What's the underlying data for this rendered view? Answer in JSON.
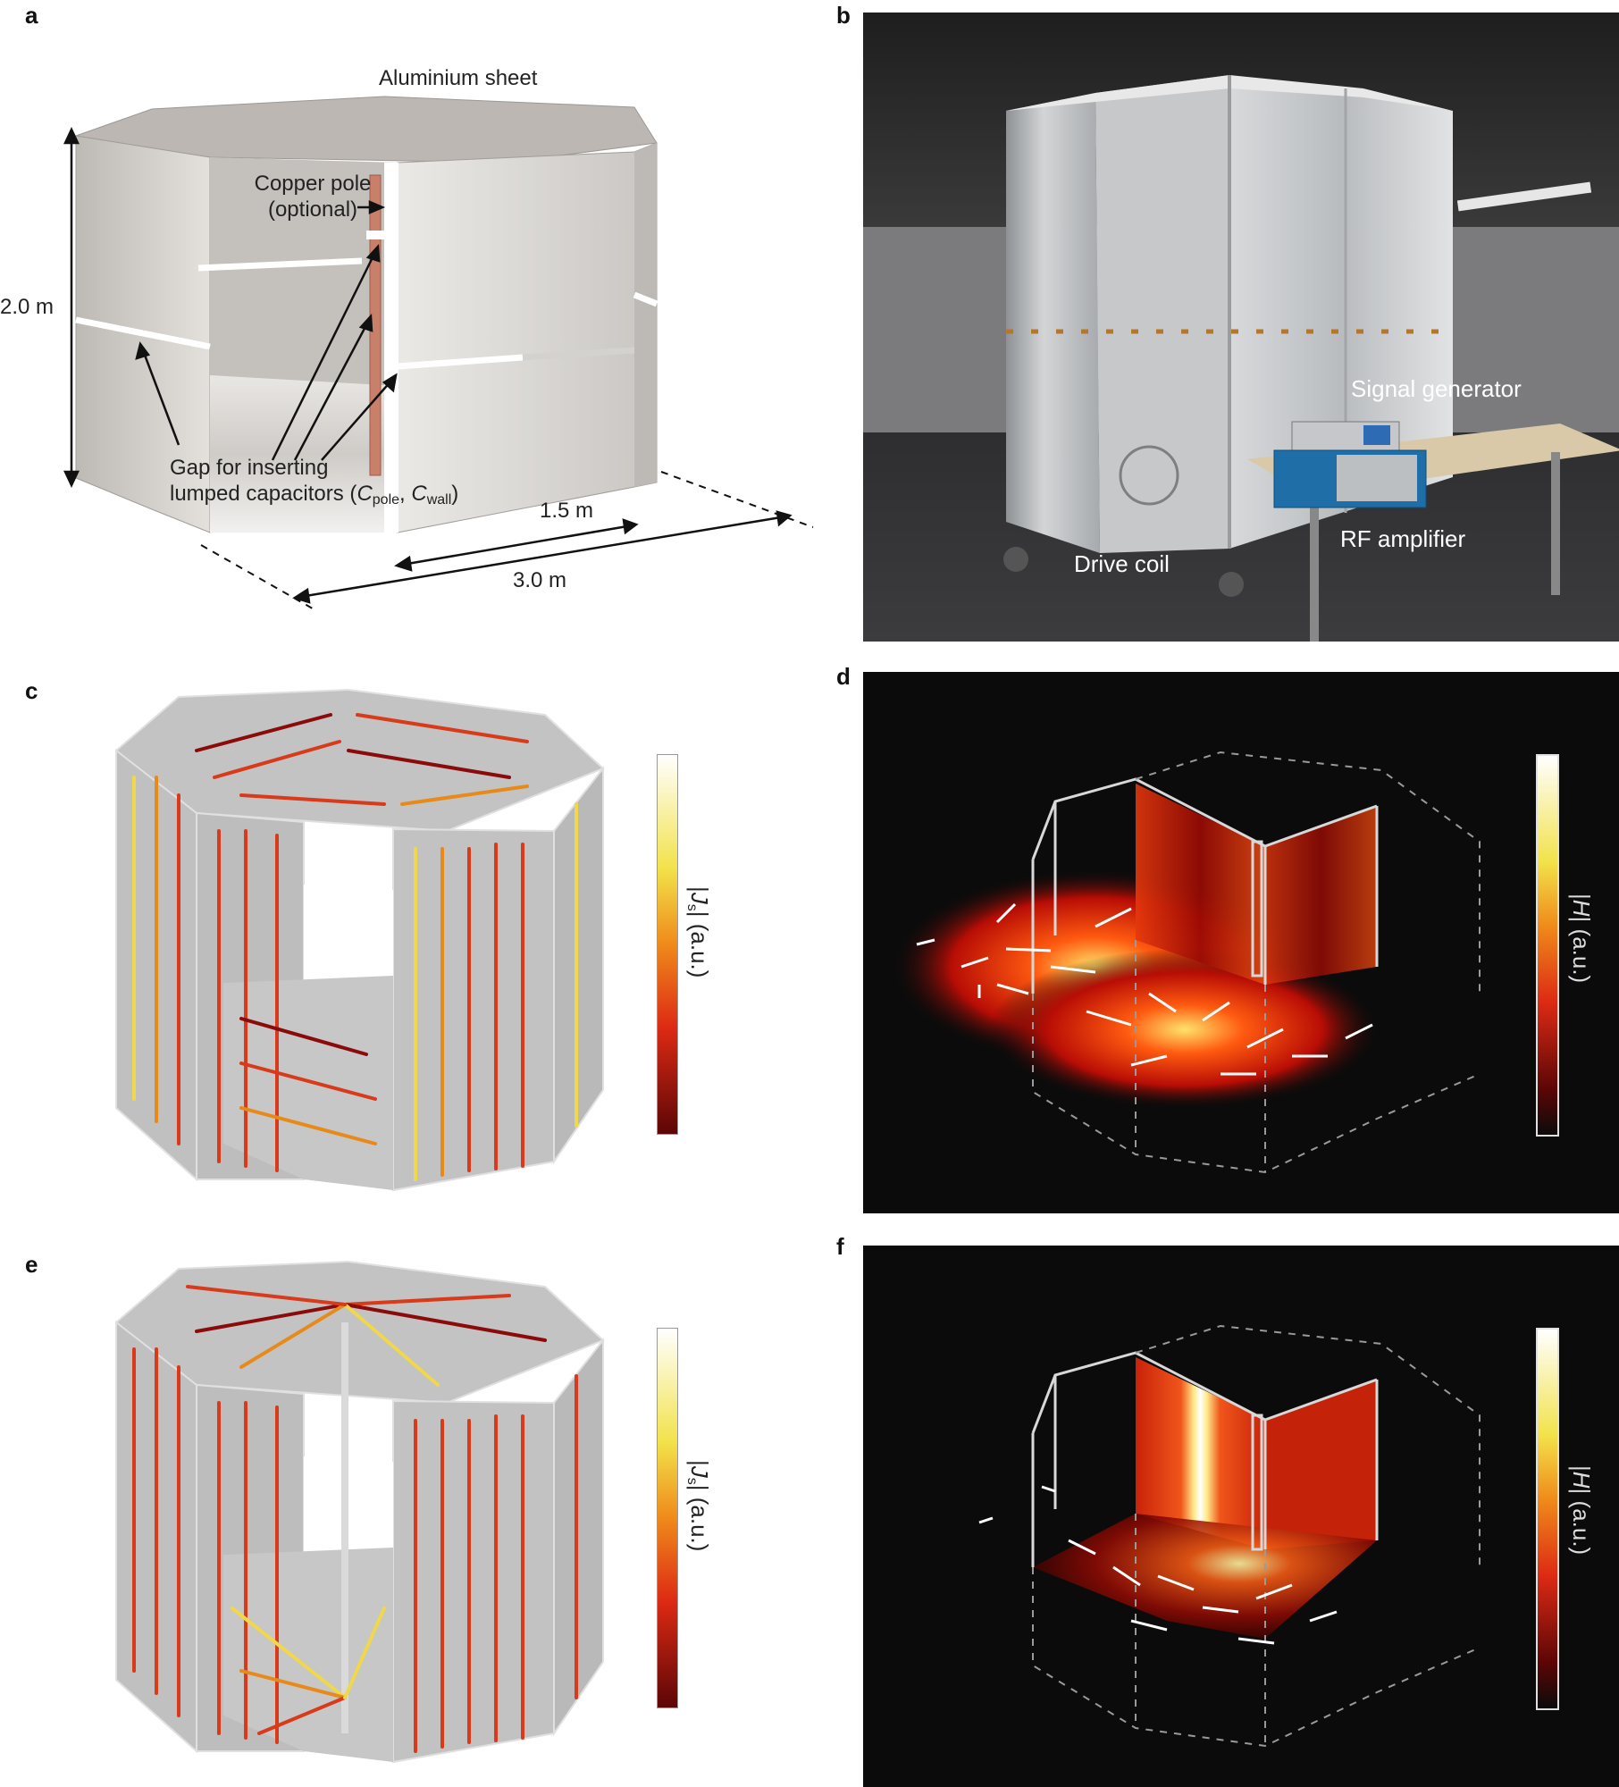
{
  "panel_labels": {
    "a": "a",
    "b": "b",
    "c": "c",
    "d": "d",
    "e": "e",
    "f": "f"
  },
  "panel_a": {
    "aluminium_sheet": "Aluminium sheet",
    "copper_pole_line1": "Copper pole",
    "copper_pole_line2": "(optional)",
    "gap_line1": "Gap for inserting",
    "gap_line2_prefix": "lumped capacitors (",
    "c_symbol": "C",
    "c_pole_sub": "pole",
    "comma": ", ",
    "c_wall_sub": "wall",
    "close_paren": ")",
    "height": "2.0 m",
    "half_width": "1.5 m",
    "width": "3.0 m"
  },
  "panel_b": {
    "signal_generator": "Signal generator",
    "rf_amplifier": "RF amplifier",
    "drive_coil": "Drive coil"
  },
  "panel_c": {
    "cbar_symbol": "J",
    "cbar_sub": "s",
    "cbar_unit": "(a.u.)"
  },
  "panel_d": {
    "cbar_symbol": "H",
    "cbar_unit": "(a.u.)"
  },
  "panel_e": {
    "cbar_symbol": "J",
    "cbar_sub": "s",
    "cbar_unit": "(a.u.)"
  },
  "panel_f": {
    "cbar_symbol": "H",
    "cbar_unit": "(a.u.)"
  },
  "colors": {
    "arrow_dark": "#8b0a0a",
    "arrow_red": "#d83a1a",
    "arrow_orange": "#e88a1a",
    "arrow_yellow": "#f0d84a",
    "field_bg": "#0b0b0b",
    "metal": "#c9c9c9"
  }
}
